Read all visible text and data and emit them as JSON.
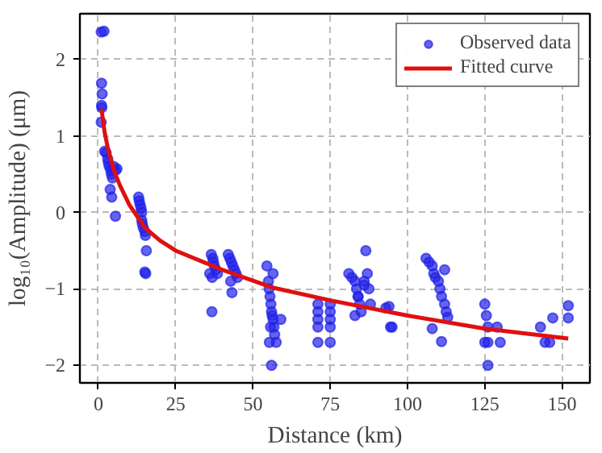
{
  "chart_data": {
    "type": "scatter",
    "xlabel": "Distance (km)",
    "ylabel": "log₁₀(Amplitude) (μm)",
    "xlim": [
      -6,
      159
    ],
    "ylim": [
      -2.23,
      2.6
    ],
    "xticks": [
      0,
      25,
      50,
      75,
      100,
      125,
      150
    ],
    "yticks": [
      {
        "value": -2,
        "label": "−2"
      },
      {
        "value": -1,
        "label": "−1"
      },
      0,
      1,
      2
    ],
    "grid": true,
    "legend": "top right",
    "series": [
      {
        "name": "Observed data",
        "color": "#2222e8",
        "marker": "circle",
        "x": [
          0.9,
          1.8,
          1,
          1.2,
          1,
          1.1,
          0.9,
          2,
          2.5,
          3,
          3.2,
          3.5,
          4,
          4.2,
          4.5,
          5,
          5.5,
          6,
          3.8,
          4.3,
          5.5,
          13,
          13.2,
          13.5,
          13.8,
          14,
          14,
          14.2,
          14.5,
          15,
          15.2,
          15.5,
          15,
          15.3,
          36,
          36.5,
          37,
          37.5,
          38,
          36.8,
          37.2,
          38.5,
          36.7,
          42,
          42.5,
          43,
          43.5,
          44,
          44.5,
          45,
          42.8,
          43.2,
          54.5,
          55,
          55.2,
          55.5,
          55.8,
          56,
          56.2,
          56.5,
          56.8,
          57,
          55.3,
          56,
          56.5,
          57.5,
          55.7,
          59,
          71,
          71,
          71,
          71,
          71,
          75,
          75,
          75,
          75,
          75,
          81,
          82,
          83,
          83.5,
          84,
          84.5,
          85,
          86,
          86.5,
          87,
          87.5,
          88,
          83,
          84,
          86,
          93,
          94,
          95,
          94.5,
          106,
          107,
          108,
          108.5,
          109,
          110,
          110.5,
          111,
          112,
          112.5,
          113,
          108,
          111,
          112,
          125,
          125.5,
          126,
          126,
          125,
          126,
          129,
          130,
          143,
          144.5,
          147,
          146,
          152,
          152
        ],
        "values": [
          2.36,
          2.37,
          1.69,
          1.55,
          1.4,
          1.37,
          1.18,
          0.8,
          0.78,
          0.7,
          0.65,
          0.6,
          0.55,
          0.5,
          0.45,
          0.6,
          0.55,
          0.57,
          0.3,
          0.2,
          -0.05,
          0.2,
          0.15,
          0.1,
          0.05,
          0.0,
          -0.1,
          -0.15,
          -0.2,
          -0.25,
          -0.3,
          -0.5,
          -0.78,
          -0.8,
          -0.8,
          -0.55,
          -0.6,
          -0.7,
          -0.75,
          -0.85,
          -0.65,
          -0.8,
          -1.3,
          -0.55,
          -0.6,
          -0.65,
          -0.7,
          -0.75,
          -0.8,
          -0.85,
          -0.9,
          -1.05,
          -0.7,
          -0.9,
          -1.0,
          -1.1,
          -1.2,
          -1.3,
          -1.35,
          -1.4,
          -1.5,
          -1.6,
          -1.7,
          -2.0,
          -0.8,
          -1.7,
          -1.5,
          -1.4,
          -1.2,
          -1.3,
          -1.4,
          -1.5,
          -1.7,
          -1.2,
          -1.3,
          -1.4,
          -1.5,
          -1.7,
          -0.8,
          -0.85,
          -0.9,
          -1.0,
          -1.1,
          -1.2,
          -1.3,
          -0.9,
          -0.5,
          -0.8,
          -1.0,
          -1.2,
          -1.35,
          -1.1,
          -0.95,
          -1.25,
          -1.23,
          -1.5,
          -1.5,
          -0.6,
          -0.65,
          -0.7,
          -0.8,
          -0.85,
          -0.9,
          -1.0,
          -1.1,
          -1.2,
          -1.3,
          -1.37,
          -1.52,
          -1.69,
          -0.75,
          -1.2,
          -1.35,
          -1.5,
          -1.7,
          -1.7,
          -2.0,
          -1.5,
          -1.7,
          -1.5,
          -1.7,
          -1.38,
          -1.7,
          -1.22,
          -1.38
        ]
      },
      {
        "name": "Fitted curve",
        "type": "line",
        "color": "#e01010",
        "marker": "none",
        "line_style": "solid",
        "x": [
          1,
          2,
          3,
          5,
          7,
          10,
          15,
          20,
          25,
          40,
          56,
          75,
          100,
          125,
          152
        ],
        "values": [
          1.35,
          1.05,
          0.85,
          0.55,
          0.35,
          0.1,
          -0.2,
          -0.37,
          -0.5,
          -0.75,
          -0.98,
          -1.15,
          -1.35,
          -1.52,
          -1.65
        ]
      }
    ]
  }
}
